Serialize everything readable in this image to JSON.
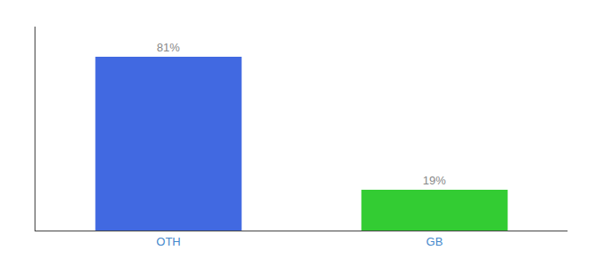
{
  "chart_data": {
    "type": "bar",
    "categories": [
      "OTH",
      "GB"
    ],
    "values": [
      81,
      19
    ],
    "value_labels": [
      "81%",
      "19%"
    ],
    "colors": [
      "#4169e1",
      "#33cc33"
    ],
    "data_labels": true,
    "ylim": [
      0,
      95
    ],
    "grid": false,
    "tick_labels": "x"
  }
}
